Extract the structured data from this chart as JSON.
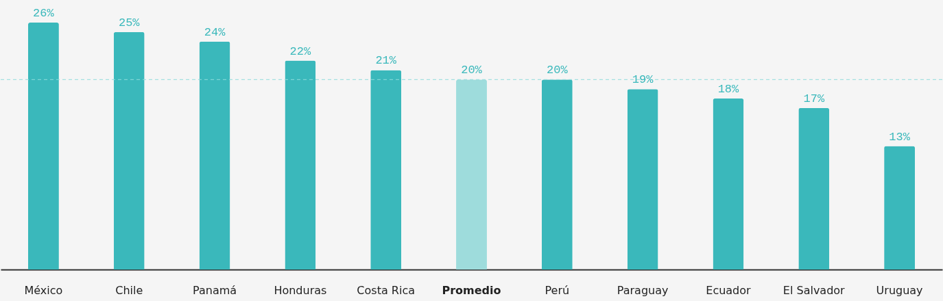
{
  "chart_data": {
    "type": "bar",
    "categories": [
      "México",
      "Chile",
      "Panamá",
      "Honduras",
      "Costa Rica",
      "Promedio",
      "Perú",
      "Paraguay",
      "Ecuador",
      "El Salvador",
      "Uruguay"
    ],
    "values": [
      26,
      25,
      24,
      22,
      21,
      20,
      20,
      19,
      18,
      17,
      13
    ],
    "value_labels": [
      "26%",
      "25%",
      "24%",
      "22%",
      "21%",
      "20%",
      "20%",
      "19%",
      "18%",
      "17%",
      "13%"
    ],
    "colors": [
      "#3ab8bb",
      "#3ab8bb",
      "#3ab8bb",
      "#3ab8bb",
      "#3ab8bb",
      "#9edcdc",
      "#3ab8bb",
      "#3ab8bb",
      "#3ab8bb",
      "#3ab8bb",
      "#3ab8bb"
    ],
    "ref_lines": [
      {
        "axis": "y",
        "value": 20,
        "color": "#8fdcdc",
        "line_style": "dashed"
      }
    ],
    "grid": false
  }
}
